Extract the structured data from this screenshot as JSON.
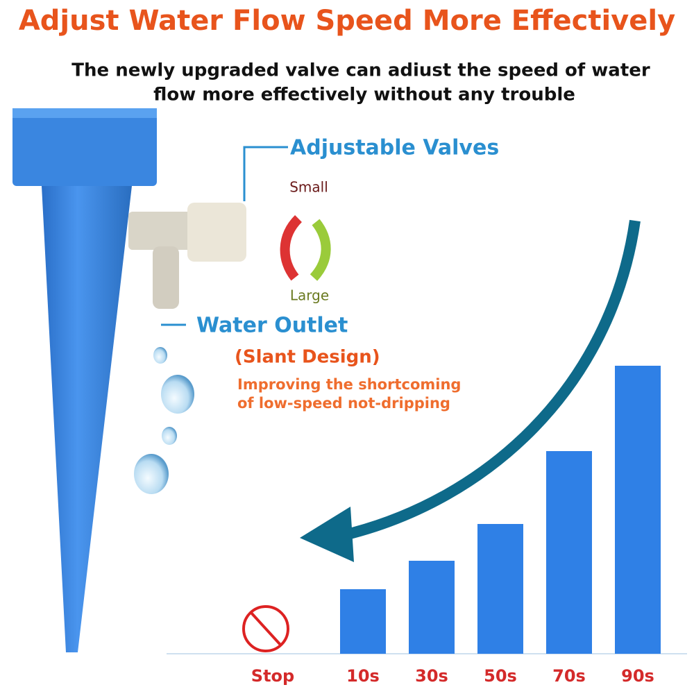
{
  "header": {
    "title": "Adjust Water Flow Speed More Effectively",
    "subtitle": [
      "The newly upgraded valve can adiust the speed of water",
      "flow more effectively without any trouble"
    ]
  },
  "labels": {
    "valves": "Adjustable Valves",
    "small": "Small",
    "large": "Large",
    "outlet": "Water Outlet",
    "slant": "(Slant Design)",
    "improve": [
      "Improving the shortcoming",
      "of low-speed not-dripping"
    ]
  },
  "chart_data": {
    "type": "bar",
    "categories": [
      "Stop",
      "10s",
      "30s",
      "50s",
      "70s",
      "90s"
    ],
    "values": [
      0,
      93,
      134,
      187,
      292,
      415
    ],
    "color": "#2f80e6"
  }
}
